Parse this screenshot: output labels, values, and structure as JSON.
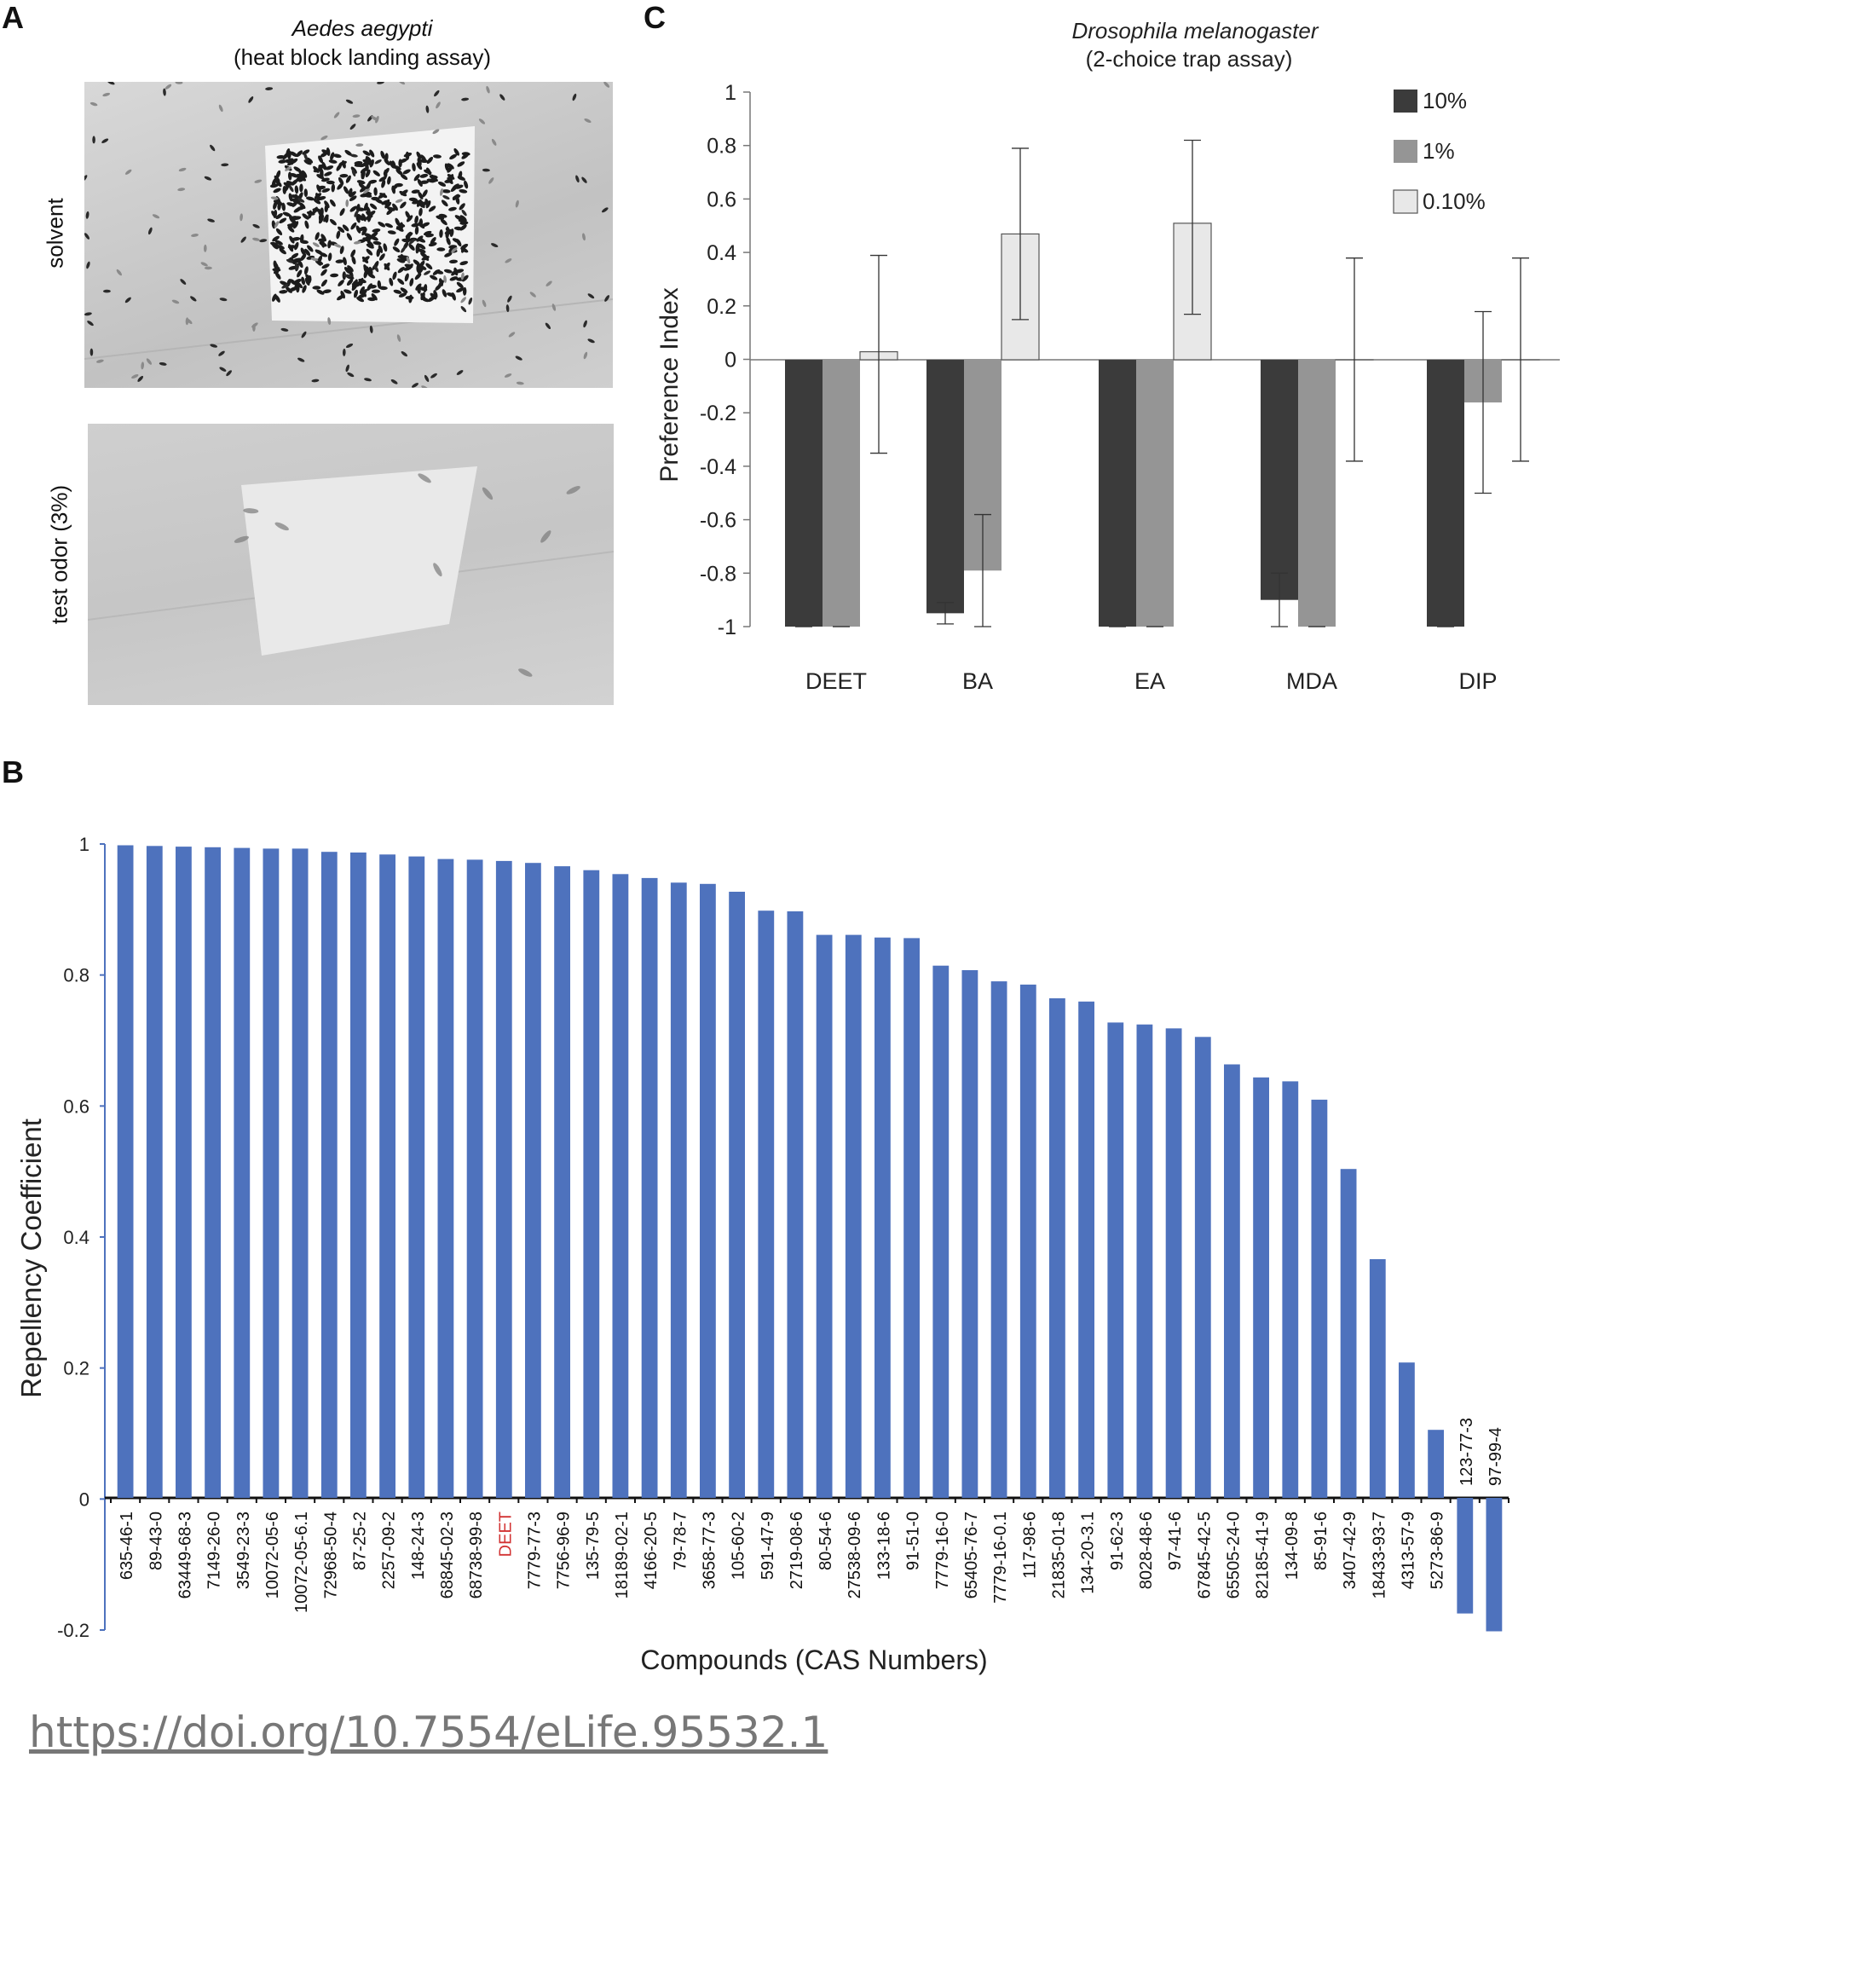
{
  "panel_labels": {
    "a": "A",
    "b": "B",
    "c": "C"
  },
  "panel_a": {
    "species": "Aedes aegypti",
    "assay": "(heat block landing assay)",
    "top_label": "solvent",
    "bottom_label": "test odor (3%)"
  },
  "doi": "https://doi.org/10.7554/eLife.95532.1",
  "colors": {
    "bar_b": "#4e72bd",
    "s10": "#3b3b3b",
    "s1": "#959595",
    "s01": "#e8e8e8"
  },
  "chart_data": [
    {
      "type": "bar",
      "panel": "C",
      "title": "Drosophila melanogaster",
      "subtitle": "(2-choice trap assay)",
      "xlabel": "",
      "ylabel": "Preference Index",
      "ylim": [
        -1,
        1
      ],
      "yticks": [
        "1",
        "0.8",
        "0.6",
        "0.4",
        "0.2",
        "0",
        "-0.2",
        "-0.4",
        "-0.6",
        "-0.8",
        "-1"
      ],
      "legend_position": "top-right",
      "categories": [
        "DEET",
        "BA",
        "EA",
        "MDA",
        "DIP"
      ],
      "series": [
        {
          "name": "10%",
          "values": [
            -1.0,
            -0.95,
            -1.0,
            -0.9,
            -1.0
          ],
          "err_low": [
            0,
            0.04,
            0,
            0.1,
            0
          ],
          "err_high": [
            0,
            0.04,
            0,
            0.1,
            0
          ]
        },
        {
          "name": "1%",
          "values": [
            -1.0,
            -0.79,
            -1.0,
            -1.0,
            -0.16
          ],
          "err_low": [
            0,
            0.21,
            0,
            0,
            0.34
          ],
          "err_high": [
            0,
            0.21,
            0,
            0,
            0.34
          ]
        },
        {
          "name": "0.10%",
          "values": [
            0.03,
            0.47,
            0.51,
            0.0,
            0.0
          ],
          "err_low": [
            0.38,
            0.32,
            0.34,
            0.38,
            0.38
          ],
          "err_high": [
            0.36,
            0.32,
            0.31,
            0.38,
            0.38
          ]
        }
      ]
    },
    {
      "type": "bar",
      "panel": "B",
      "title": "",
      "xlabel": "Compounds (CAS Numbers)",
      "ylabel": "Repellency Coefficient",
      "ylim": [
        -0.2,
        1
      ],
      "yticks": [
        "1",
        "0.8",
        "0.6",
        "0.4",
        "0.2",
        "0",
        "-0.2"
      ],
      "highlight_category": "DEET",
      "categories": [
        "635-46-1",
        "89-43-0",
        "63449-68-3",
        "7149-26-0",
        "3549-23-3",
        "10072-05-6",
        "10072-05-6.1",
        "72968-50-4",
        "87-25-2",
        "2257-09-2",
        "148-24-3",
        "68845-02-3",
        "68738-99-8",
        "DEET",
        "7779-77-3",
        "7756-96-9",
        "135-79-5",
        "18189-02-1",
        "4166-20-5",
        "79-78-7",
        "3658-77-3",
        "105-60-2",
        "591-47-9",
        "2719-08-6",
        "80-54-6",
        "27538-09-6",
        "133-18-6",
        "91-51-0",
        "7779-16-0",
        "65405-76-7",
        "7779-16-0.1",
        "117-98-6",
        "21835-01-8",
        "134-20-3.1",
        "91-62-3",
        "8028-48-6",
        "97-41-6",
        "67845-42-5",
        "65505-24-0",
        "82185-41-9",
        "134-09-8",
        "85-91-6",
        "3407-42-9",
        "18433-93-7",
        "4313-57-9",
        "5273-86-9",
        "123-77-3",
        "97-99-4"
      ],
      "values": [
        0.998,
        0.997,
        0.996,
        0.995,
        0.994,
        0.993,
        0.993,
        0.988,
        0.987,
        0.984,
        0.981,
        0.977,
        0.976,
        0.974,
        0.971,
        0.966,
        0.96,
        0.954,
        0.948,
        0.941,
        0.939,
        0.927,
        0.898,
        0.897,
        0.861,
        0.861,
        0.857,
        0.856,
        0.814,
        0.807,
        0.79,
        0.785,
        0.764,
        0.759,
        0.727,
        0.724,
        0.718,
        0.705,
        0.663,
        0.643,
        0.637,
        0.609,
        0.503,
        0.365,
        0.207,
        0.104,
        -0.175,
        -0.202
      ]
    }
  ]
}
